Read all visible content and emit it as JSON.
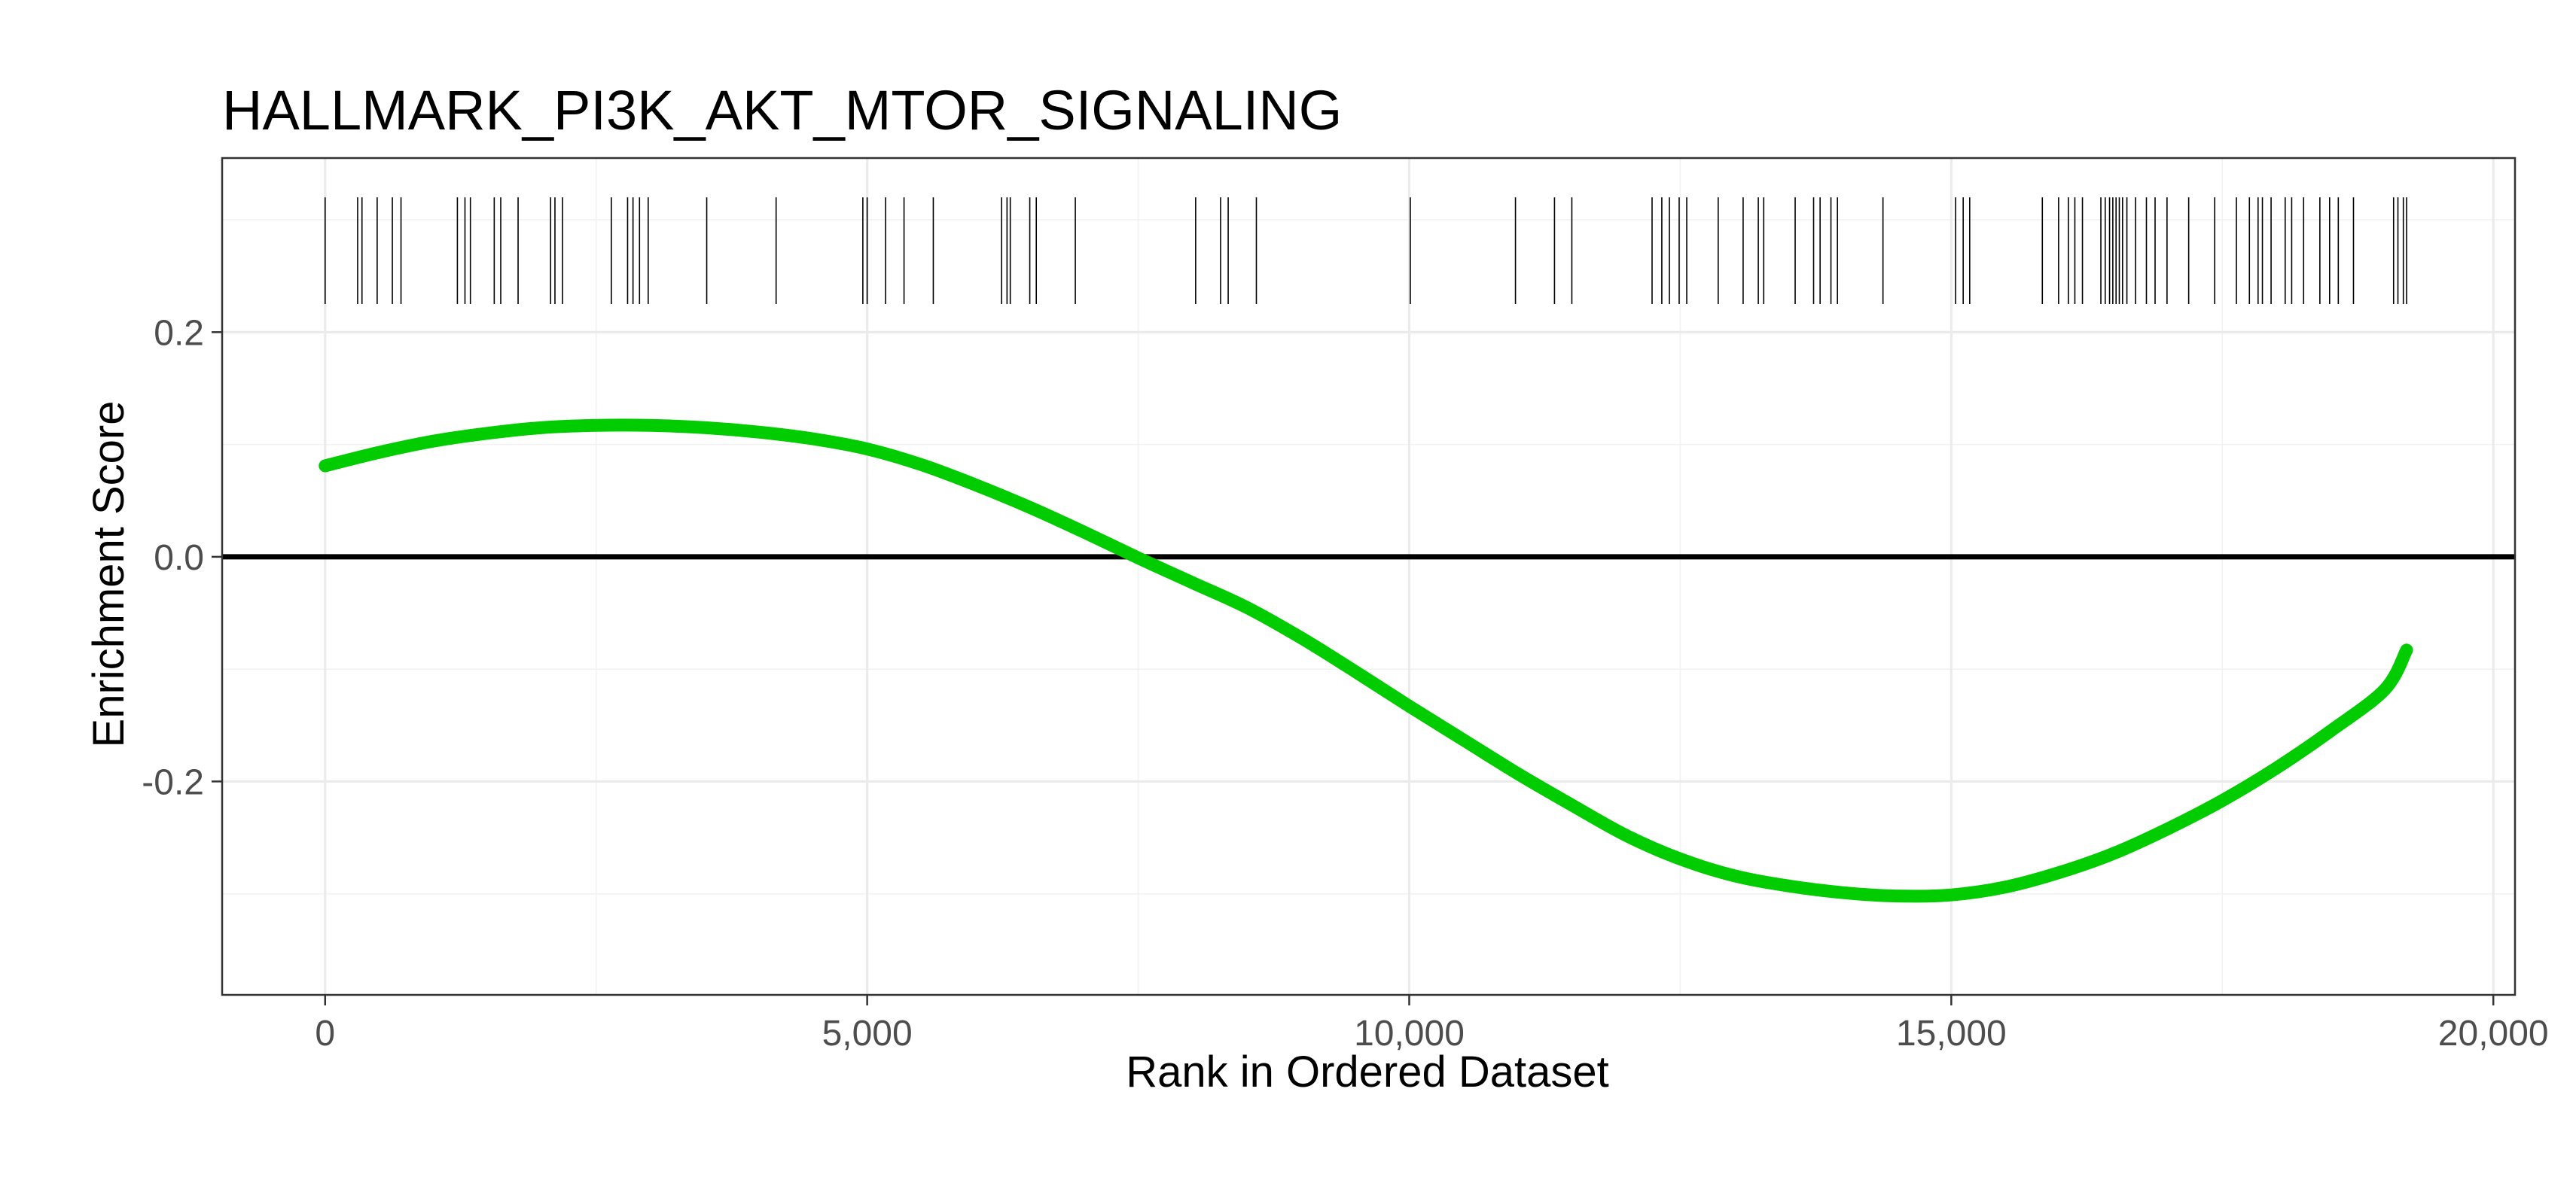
{
  "chart_data": {
    "type": "line",
    "title": "HALLMARK_PI3K_AKT_MTOR_SIGNALING",
    "xlabel": "Rank in Ordered Dataset",
    "ylabel": "Enrichment Score",
    "xlim": [
      -950,
      20200
    ],
    "ylim": [
      -0.39,
      0.355
    ],
    "x_ticks": [
      {
        "value": 0,
        "label": "0"
      },
      {
        "value": 5000,
        "label": "5,000"
      },
      {
        "value": 10000,
        "label": "10,000"
      },
      {
        "value": 15000,
        "label": "15,000"
      },
      {
        "value": 20000,
        "label": "20,000"
      }
    ],
    "y_ticks": [
      {
        "value": 0.2,
        "label": "0.2"
      },
      {
        "value": 0.0,
        "label": "0.0"
      },
      {
        "value": -0.2,
        "label": "-0.2"
      }
    ],
    "y_minor_ticks": [
      0.3,
      0.1,
      -0.1,
      -0.3
    ],
    "x_minor_ticks": [
      2500,
      7500,
      12500,
      17500
    ],
    "grid": true,
    "zero_line": 0,
    "series": [
      {
        "color": "#00cc00",
        "x": [
          0,
          500,
          1000,
          1500,
          2000,
          2500,
          3000,
          3500,
          4000,
          4500,
          5000,
          5500,
          6000,
          6500,
          7000,
          7500,
          8000,
          8500,
          9000,
          9500,
          10000,
          10500,
          11000,
          11500,
          12000,
          12500,
          13000,
          13500,
          14000,
          14500,
          15000,
          15500,
          16000,
          16500,
          17000,
          17500,
          18000,
          18500,
          19000,
          19200
        ],
        "values": [
          0.081,
          0.093,
          0.103,
          0.11,
          0.115,
          0.117,
          0.117,
          0.115,
          0.111,
          0.105,
          0.096,
          0.082,
          0.064,
          0.044,
          0.022,
          -0.001,
          -0.023,
          -0.045,
          -0.072,
          -0.102,
          -0.133,
          -0.163,
          -0.193,
          -0.221,
          -0.248,
          -0.269,
          -0.284,
          -0.293,
          -0.299,
          -0.302,
          -0.301,
          -0.294,
          -0.281,
          -0.264,
          -0.242,
          -0.217,
          -0.188,
          -0.155,
          -0.118,
          -0.083
        ]
      }
    ],
    "hits": {
      "color": "#000000",
      "y_range": [
        0.225,
        0.32
      ],
      "ranks": [
        0,
        300,
        340,
        480,
        620,
        700,
        1220,
        1290,
        1340,
        1560,
        1620,
        1780,
        2080,
        2120,
        2190,
        2640,
        2790,
        2840,
        2900,
        2980,
        3520,
        4160,
        4960,
        5000,
        5170,
        5340,
        5610,
        6240,
        6290,
        6320,
        6500,
        6560,
        6920,
        8030,
        8260,
        8330,
        8590,
        10010,
        10980,
        11340,
        11500,
        12240,
        12330,
        12400,
        12490,
        12560,
        12850,
        13080,
        13220,
        13270,
        13560,
        13730,
        13790,
        13890,
        13950,
        14370,
        15040,
        15110,
        15170,
        15840,
        15990,
        16080,
        16140,
        16210,
        16380,
        16420,
        16460,
        16490,
        16520,
        16550,
        16580,
        16620,
        16700,
        16800,
        16880,
        16990,
        17190,
        17430,
        17630,
        17750,
        17830,
        17870,
        17950,
        18080,
        18140,
        18250,
        18400,
        18490,
        18570,
        18710,
        19080,
        19120,
        19170,
        19200
      ]
    }
  }
}
